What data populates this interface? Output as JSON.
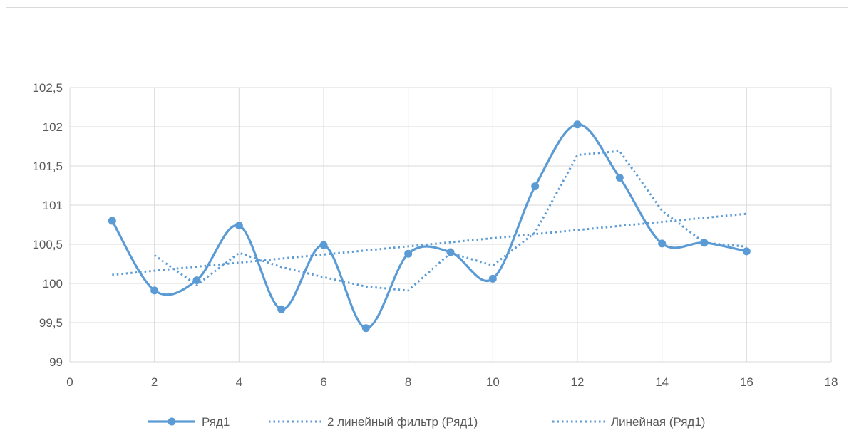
{
  "chart_data": {
    "type": "line",
    "xlim": [
      0,
      18
    ],
    "ylim": [
      99,
      102.5
    ],
    "x_ticks": [
      "0",
      "2",
      "4",
      "6",
      "8",
      "10",
      "12",
      "14",
      "16",
      "18"
    ],
    "y_ticks": [
      "99",
      "99,5",
      "100",
      "100,5",
      "101",
      "101,5",
      "102",
      "102,5"
    ],
    "grid": true,
    "legend_position": "bottom",
    "colors": {
      "series": "#5b9bd5",
      "grid": "#d9d9d9",
      "text": "#595959"
    },
    "series": [
      {
        "name": "Ряд1",
        "style": "smooth-line-with-markers",
        "x": [
          1,
          2,
          3,
          4,
          5,
          6,
          7,
          8,
          9,
          10,
          11,
          12,
          13,
          14,
          15,
          16
        ],
        "y": [
          100.8,
          99.91,
          100.04,
          100.74,
          99.67,
          100.49,
          99.43,
          100.38,
          100.4,
          100.06,
          101.24,
          102.03,
          101.35,
          100.51,
          100.52,
          100.41
        ]
      },
      {
        "name": "2 линейный фильтр (Ряд1)",
        "style": "dotted",
        "x": [
          2,
          3,
          4,
          5,
          6,
          7,
          8,
          9,
          10,
          11,
          12,
          13,
          14,
          15,
          16
        ],
        "y": [
          100.36,
          99.98,
          100.39,
          100.21,
          100.08,
          99.96,
          99.91,
          100.39,
          100.23,
          100.65,
          101.64,
          101.69,
          100.93,
          100.52,
          100.47
        ]
      },
      {
        "name": "Линейная (Ряд1)",
        "style": "dotted",
        "x": [
          1,
          16
        ],
        "y": [
          100.11,
          100.89
        ]
      }
    ]
  }
}
